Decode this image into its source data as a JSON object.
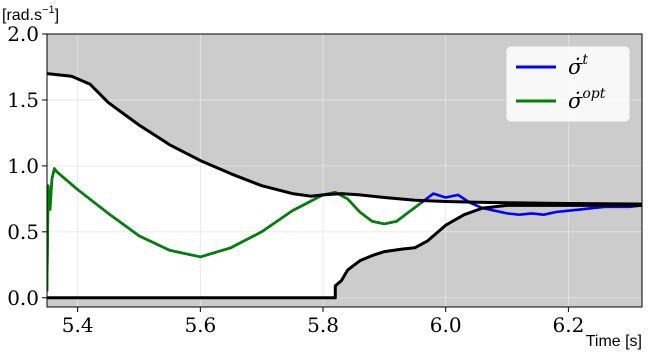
{
  "chart_data": {
    "type": "line",
    "xlabel": "Time [s]",
    "ylabel": "[rad.s",
    "ylabel_sup": "−1",
    "ylabel_end": "]",
    "xlim": [
      5.35,
      6.32
    ],
    "ylim": [
      -0.07,
      2.0
    ],
    "xticks": [
      5.4,
      5.6,
      5.8,
      6.0,
      6.2
    ],
    "xtick_labels": [
      "5.4",
      "5.6",
      "5.8",
      "6.0",
      "6.2"
    ],
    "yticks": [
      0.0,
      0.5,
      1.0,
      1.5,
      2.0
    ],
    "ytick_labels": [
      "0.0",
      "0.5",
      "1.0",
      "1.5",
      "2.0"
    ],
    "grid": true,
    "legend_position": "top-right",
    "colors": {
      "background": "#cccccc",
      "feasible_region": "#ffffff",
      "grid": "#e6e6e6",
      "bound": "#000000",
      "sigma_t": "#0000ff",
      "sigma_opt": "#008000"
    },
    "legend": [
      {
        "base": "σ̇",
        "sup": "t",
        "color": "#0000ff"
      },
      {
        "base": "σ̇",
        "sup": "opt",
        "color": "#008000"
      }
    ],
    "series": [
      {
        "id": "upper_bound",
        "color": "#000000",
        "x": [
          5.35,
          5.39,
          5.42,
          5.45,
          5.5,
          5.55,
          5.6,
          5.65,
          5.7,
          5.75,
          5.78,
          5.8,
          5.83,
          5.86,
          5.9,
          5.95,
          6.0,
          6.05,
          6.1,
          6.2,
          6.32
        ],
        "y": [
          1.7,
          1.68,
          1.62,
          1.48,
          1.31,
          1.16,
          1.04,
          0.94,
          0.85,
          0.79,
          0.77,
          0.78,
          0.79,
          0.78,
          0.76,
          0.74,
          0.73,
          0.725,
          0.72,
          0.715,
          0.71
        ]
      },
      {
        "id": "lower_bound",
        "color": "#000000",
        "x": [
          5.35,
          5.82,
          5.82,
          5.83,
          5.84,
          5.86,
          5.88,
          5.9,
          5.93,
          5.95,
          5.97,
          6.0,
          6.03,
          6.06,
          6.1,
          6.2,
          6.32
        ],
        "y": [
          0.0,
          0.0,
          0.09,
          0.13,
          0.21,
          0.28,
          0.32,
          0.35,
          0.37,
          0.38,
          0.43,
          0.55,
          0.63,
          0.68,
          0.7,
          0.7,
          0.7
        ]
      },
      {
        "id": "sigma_t",
        "color": "#0000ff",
        "x": [
          5.35,
          5.352,
          5.355,
          5.358,
          5.362,
          5.365,
          5.4,
          5.45,
          5.5,
          5.55,
          5.6,
          5.65,
          5.7,
          5.75,
          5.8,
          5.82,
          5.84,
          5.86,
          5.88,
          5.9,
          5.92,
          5.94,
          5.96,
          5.98,
          6.0,
          6.02,
          6.04,
          6.06,
          6.08,
          6.1,
          6.12,
          6.14,
          6.16,
          6.18,
          6.2,
          6.22,
          6.24,
          6.26,
          6.28,
          6.3,
          6.32
        ],
        "y": [
          0.05,
          0.85,
          0.67,
          0.9,
          0.98,
          0.96,
          0.82,
          0.64,
          0.47,
          0.36,
          0.31,
          0.38,
          0.5,
          0.66,
          0.78,
          0.8,
          0.75,
          0.65,
          0.58,
          0.56,
          0.58,
          0.65,
          0.72,
          0.79,
          0.76,
          0.78,
          0.72,
          0.68,
          0.66,
          0.64,
          0.63,
          0.64,
          0.63,
          0.65,
          0.66,
          0.67,
          0.68,
          0.69,
          0.69,
          0.69,
          0.7
        ]
      },
      {
        "id": "sigma_opt",
        "color": "#008000",
        "x": [
          5.35,
          5.352,
          5.355,
          5.358,
          5.362,
          5.365,
          5.4,
          5.45,
          5.5,
          5.55,
          5.6,
          5.65,
          5.7,
          5.75,
          5.8,
          5.82,
          5.84,
          5.86,
          5.88,
          5.9,
          5.92,
          5.94,
          5.96
        ],
        "y": [
          0.05,
          0.85,
          0.67,
          0.9,
          0.98,
          0.96,
          0.82,
          0.64,
          0.47,
          0.36,
          0.31,
          0.38,
          0.5,
          0.66,
          0.78,
          0.8,
          0.75,
          0.65,
          0.58,
          0.56,
          0.58,
          0.65,
          0.72
        ]
      }
    ]
  }
}
